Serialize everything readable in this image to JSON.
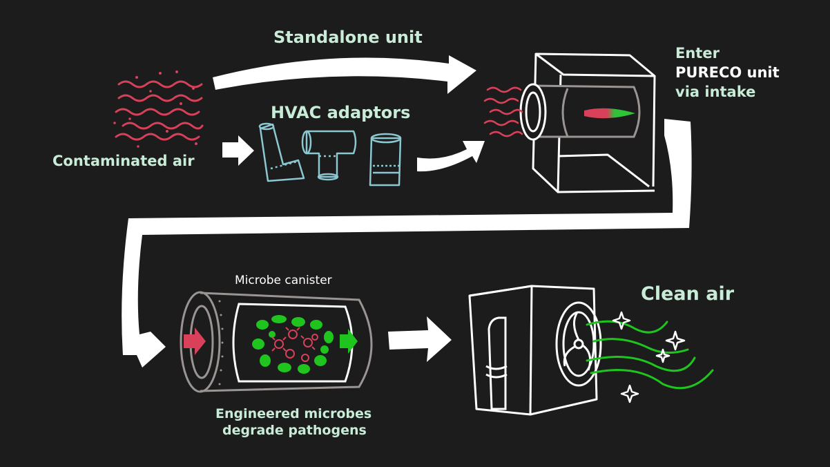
{
  "labels": {
    "standalone": "Standalone unit",
    "hvac": "HVAC adaptors",
    "contaminated": "Contaminated air",
    "enter_line1": "Enter",
    "enter_line2": "PURECO unit",
    "enter_line3": "via intake",
    "canister": "Microbe canister",
    "engineered_line1": "Engineered microbes",
    "engineered_line2": "degrade pathogens",
    "clean_air": "Clean air"
  },
  "colors": {
    "background": "#1c1c1c",
    "contaminated": "#d9405a",
    "clean": "#1fc41f",
    "label": "#c9ecd9",
    "adaptor": "#8cc8d2",
    "canister": "#9a9592",
    "line": "#ffffff"
  }
}
